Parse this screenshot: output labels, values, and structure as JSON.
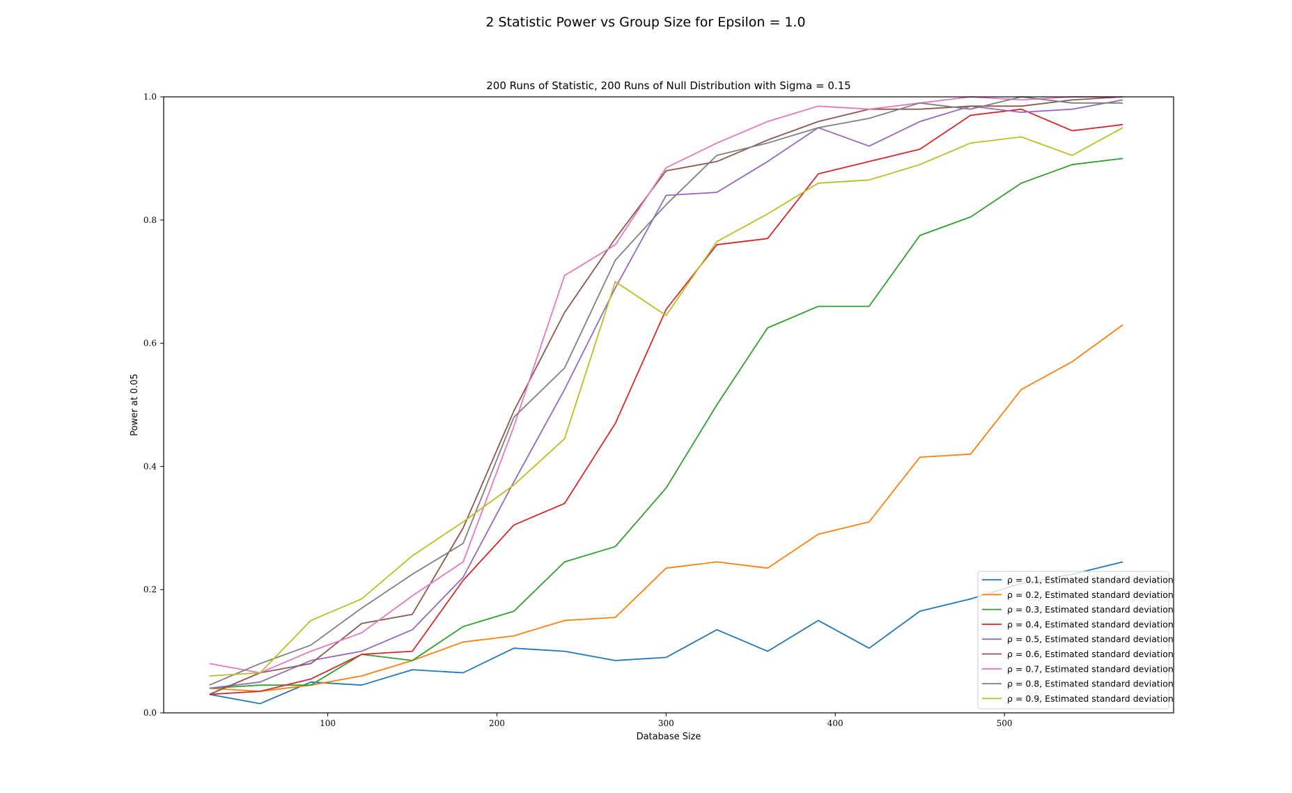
{
  "chart_data": {
    "type": "line",
    "title": "2 Statistic Power vs Group Size for Epsilon = 1.0",
    "subtitle": "200 Runs of Statistic, 200 Runs of Null Distribution with Sigma = 0.15",
    "xlabel": "Database Size",
    "ylabel": "Power at 0.05",
    "xlim": [
      3,
      600
    ],
    "ylim": [
      0,
      1.0
    ],
    "xticks": [
      100,
      200,
      300,
      400,
      500
    ],
    "yticks": [
      0.0,
      0.2,
      0.4,
      0.6,
      0.8,
      1.0
    ],
    "ytick_labels": [
      "0.0",
      "0.2",
      "0.4",
      "0.6",
      "0.8",
      "1.0"
    ],
    "grid": false,
    "legend_position": "lower-right",
    "x": [
      30,
      60,
      90,
      120,
      150,
      180,
      210,
      240,
      270,
      300,
      330,
      360,
      390,
      420,
      450,
      480,
      510,
      540,
      570
    ],
    "series": [
      {
        "name": "ρ = 0.1, Estimated standard deviation",
        "color": "#1f77b4",
        "values": [
          0.03,
          0.015,
          0.05,
          0.045,
          0.07,
          0.065,
          0.105,
          0.1,
          0.085,
          0.09,
          0.135,
          0.1,
          0.15,
          0.105,
          0.165,
          0.185,
          0.21,
          0.225,
          0.245
        ]
      },
      {
        "name": "ρ = 0.2, Estimated standard deviation",
        "color": "#ff7f0e",
        "values": [
          0.04,
          0.035,
          0.045,
          0.06,
          0.085,
          0.115,
          0.125,
          0.15,
          0.155,
          0.235,
          0.245,
          0.235,
          0.29,
          0.31,
          0.415,
          0.42,
          0.525,
          0.57,
          0.63
        ]
      },
      {
        "name": "ρ = 0.3, Estimated standard deviation",
        "color": "#2ca02c",
        "values": [
          0.04,
          0.045,
          0.045,
          0.095,
          0.085,
          0.14,
          0.165,
          0.245,
          0.27,
          0.365,
          0.5,
          0.625,
          0.66,
          0.66,
          0.775,
          0.805,
          0.86,
          0.89,
          0.9
        ]
      },
      {
        "name": "ρ = 0.4, Estimated standard deviation",
        "color": "#d62728",
        "values": [
          0.03,
          0.035,
          0.055,
          0.095,
          0.1,
          0.215,
          0.305,
          0.34,
          0.47,
          0.655,
          0.76,
          0.77,
          0.875,
          0.895,
          0.915,
          0.97,
          0.98,
          0.945,
          0.955
        ]
      },
      {
        "name": "ρ = 0.5, Estimated standard deviation",
        "color": "#9467bd",
        "values": [
          0.04,
          0.05,
          0.085,
          0.1,
          0.135,
          0.22,
          0.375,
          0.525,
          0.69,
          0.84,
          0.845,
          0.895,
          0.95,
          0.92,
          0.96,
          0.985,
          0.975,
          0.98,
          0.995
        ]
      },
      {
        "name": "ρ = 0.6, Estimated standard deviation",
        "color": "#8c564b",
        "values": [
          0.03,
          0.065,
          0.08,
          0.145,
          0.16,
          0.3,
          0.49,
          0.65,
          0.77,
          0.88,
          0.895,
          0.93,
          0.96,
          0.98,
          0.98,
          0.985,
          0.985,
          0.995,
          1.0
        ]
      },
      {
        "name": "ρ = 0.7, Estimated standard deviation",
        "color": "#e377c2",
        "values": [
          0.08,
          0.065,
          0.1,
          0.13,
          0.19,
          0.245,
          0.465,
          0.71,
          0.76,
          0.885,
          0.925,
          0.96,
          0.985,
          0.98,
          0.99,
          1.0,
          0.995,
          1.0,
          1.0
        ]
      },
      {
        "name": "ρ = 0.8, Estimated standard deviation",
        "color": "#7f7f7f",
        "values": [
          0.045,
          0.08,
          0.11,
          0.17,
          0.225,
          0.275,
          0.48,
          0.56,
          0.735,
          0.825,
          0.905,
          0.925,
          0.95,
          0.965,
          0.99,
          0.98,
          1.0,
          0.99,
          0.99
        ]
      },
      {
        "name": "ρ = 0.9, Estimated standard deviation",
        "color": "#bcbd22",
        "values": [
          0.06,
          0.065,
          0.15,
          0.185,
          0.255,
          0.31,
          0.37,
          0.445,
          0.7,
          0.645,
          0.765,
          0.81,
          0.86,
          0.865,
          0.89,
          0.925,
          0.935,
          0.905,
          0.95
        ]
      }
    ]
  }
}
